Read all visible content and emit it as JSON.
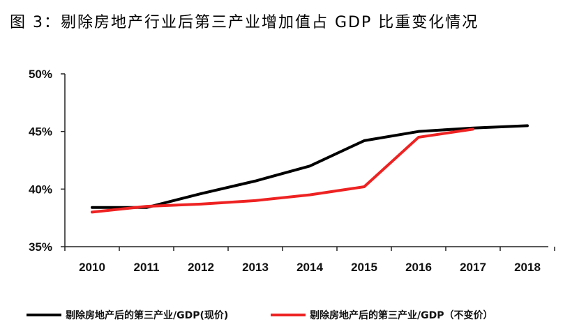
{
  "chart_data": {
    "type": "line",
    "title": "图 3：剔除房地产行业后第三产业增加值占 GDP 比重变化情况",
    "xlabel": "",
    "ylabel": "",
    "categories": [
      "2010",
      "2011",
      "2012",
      "2013",
      "2014",
      "2015",
      "2016",
      "2017",
      "2018"
    ],
    "ylim": [
      35,
      50
    ],
    "yticks": [
      35,
      40,
      45,
      50
    ],
    "ytick_labels": [
      "35%",
      "40%",
      "45%",
      "50%"
    ],
    "legend_position": "bottom",
    "series": [
      {
        "name": "剔除房地产后的第三产业/GDP(现价)",
        "color": "#000000",
        "values": [
          38.4,
          38.4,
          39.6,
          40.7,
          42.0,
          44.2,
          45.0,
          45.3,
          45.5
        ]
      },
      {
        "name": "剔除房地产后的第三产业/GDP（不变价）",
        "color": "#ee2222",
        "values": [
          38.0,
          38.5,
          38.7,
          39.0,
          39.5,
          40.2,
          44.5,
          45.2,
          null
        ]
      }
    ]
  }
}
